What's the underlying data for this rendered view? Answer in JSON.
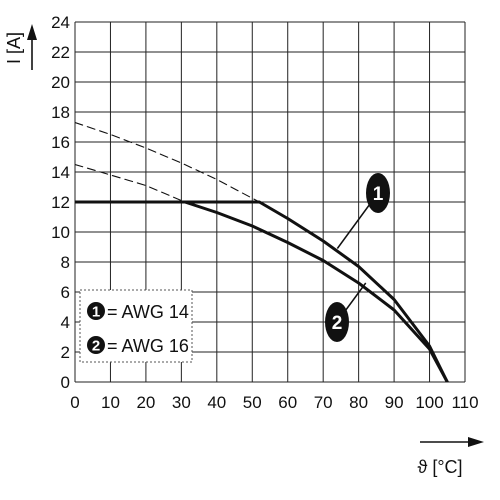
{
  "chart_data": {
    "type": "line",
    "xlabel": "ϑ [°C]",
    "ylabel": "I [A]",
    "xlim": [
      0,
      110
    ],
    "ylim": [
      0,
      24
    ],
    "x_ticks": [
      0,
      10,
      20,
      30,
      40,
      50,
      60,
      70,
      80,
      90,
      100,
      110
    ],
    "y_ticks": [
      0,
      2,
      4,
      6,
      8,
      10,
      12,
      14,
      16,
      18,
      20,
      22,
      24
    ],
    "grid": true,
    "legend": {
      "placement": "bottom-left",
      "entries": [
        {
          "marker": "1",
          "label": "= AWG 14"
        },
        {
          "marker": "2",
          "label": "= AWG 16"
        }
      ]
    },
    "series": [
      {
        "marker": "1",
        "style": "solid",
        "points": [
          [
            0,
            12
          ],
          [
            52,
            12
          ],
          [
            60,
            10.9
          ],
          [
            70,
            9.4
          ],
          [
            80,
            7.7
          ],
          [
            90,
            5.5
          ],
          [
            100,
            2.4
          ],
          [
            105,
            0
          ]
        ]
      },
      {
        "marker": "2",
        "style": "solid",
        "points": [
          [
            0,
            12
          ],
          [
            31,
            12
          ],
          [
            40,
            11.3
          ],
          [
            50,
            10.4
          ],
          [
            60,
            9.3
          ],
          [
            70,
            8.1
          ],
          [
            80,
            6.6
          ],
          [
            90,
            4.8
          ],
          [
            100,
            2.2
          ],
          [
            105,
            0
          ]
        ]
      },
      {
        "marker": "1",
        "style": "dashed",
        "points": [
          [
            0,
            17.3
          ],
          [
            10,
            16.5
          ],
          [
            20,
            15.6
          ],
          [
            30,
            14.6
          ],
          [
            40,
            13.5
          ],
          [
            52,
            12
          ]
        ]
      },
      {
        "marker": "2",
        "style": "dashed",
        "points": [
          [
            0,
            14.5
          ],
          [
            10,
            13.8
          ],
          [
            20,
            13.1
          ],
          [
            31,
            12
          ]
        ]
      }
    ],
    "callouts": [
      {
        "marker": "1",
        "to": [
          74,
          8.9
        ]
      },
      {
        "marker": "2",
        "to": [
          82,
          6.6
        ]
      }
    ]
  }
}
